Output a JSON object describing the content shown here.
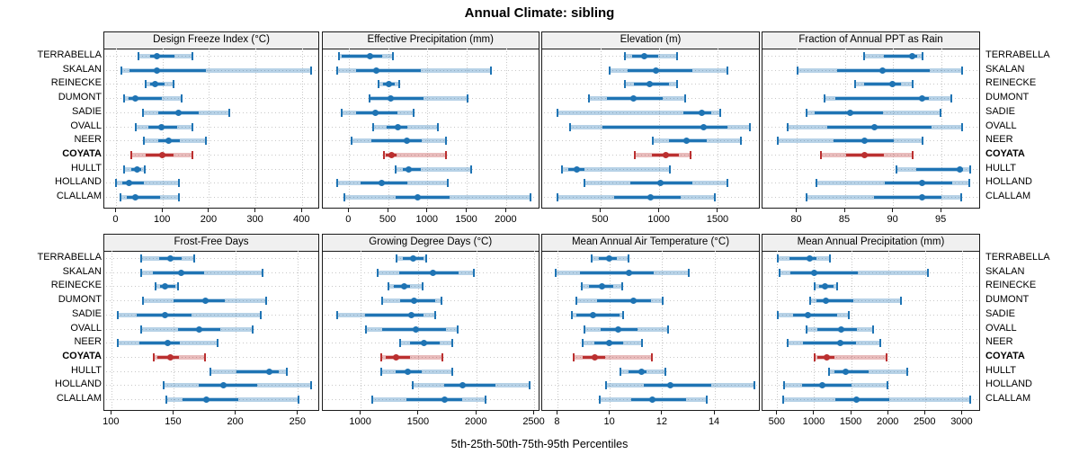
{
  "title": "Annual Climate: sibling",
  "caption": "5th-25th-50th-75th-95th Percentiles",
  "stations": [
    "TERRABELLA",
    "SKALAN",
    "REINECKE",
    "DUMONT",
    "SADIE",
    "OVALL",
    "NEER",
    "COYATA",
    "HULLT",
    "HOLLAND",
    "CLALLAM"
  ],
  "highlight_station": "COYATA",
  "percentiles": [
    5,
    25,
    50,
    75,
    95
  ],
  "colors": {
    "series": "#1f74b4",
    "highlight": "#bb3030",
    "grid": "#c8c8c8",
    "strip_bg": "#f0f0f0",
    "border": "#1a1a1a",
    "text": "#000000"
  },
  "chart_data": [
    {
      "type": "dot-interval",
      "title": "Design Freeze Index (°C)",
      "xlim": [
        -26,
        438
      ],
      "ticks": [
        0,
        100,
        200,
        300,
        400
      ],
      "series": [
        {
          "name": "TERRABELLA",
          "values": [
            48,
            73,
            87,
            124,
            163
          ]
        },
        {
          "name": "SKALAN",
          "values": [
            10,
            29,
            87,
            193,
            419
          ]
        },
        {
          "name": "REINECKE",
          "values": [
            63,
            73,
            84,
            103,
            123
          ]
        },
        {
          "name": "DUMONT",
          "values": [
            17,
            26,
            41,
            97,
            140
          ]
        },
        {
          "name": "SADIE",
          "values": [
            58,
            90,
            134,
            177,
            243
          ]
        },
        {
          "name": "OVALL",
          "values": [
            41,
            68,
            97,
            131,
            164
          ]
        },
        {
          "name": "NEER",
          "values": [
            60,
            90,
            112,
            137,
            192
          ]
        },
        {
          "name": "COYATA",
          "values": [
            32,
            63,
            99,
            123,
            163
          ]
        },
        {
          "name": "HULLT",
          "values": [
            17,
            32,
            45,
            54,
            61
          ]
        },
        {
          "name": "HOLLAND",
          "values": [
            0,
            13,
            28,
            60,
            135
          ]
        },
        {
          "name": "CLALLAM",
          "values": [
            9,
            23,
            41,
            94,
            135
          ]
        }
      ]
    },
    {
      "type": "dot-interval",
      "title": "Effective Precipitation (mm)",
      "xlim": [
        -340,
        2430
      ],
      "ticks": [
        0,
        500,
        1000,
        1500,
        2000
      ],
      "series": [
        {
          "name": "TERRABELLA",
          "values": [
            -134,
            -95,
            271,
            420,
            557
          ]
        },
        {
          "name": "SKALAN",
          "values": [
            -150,
            90,
            345,
            910,
            1805
          ]
        },
        {
          "name": "REINECKE",
          "values": [
            375,
            430,
            500,
            585,
            640
          ]
        },
        {
          "name": "DUMONT",
          "values": [
            260,
            270,
            525,
            945,
            1510
          ]
        },
        {
          "name": "SADIE",
          "values": [
            -95,
            90,
            330,
            615,
            815
          ]
        },
        {
          "name": "OVALL",
          "values": [
            310,
            475,
            615,
            735,
            1125
          ]
        },
        {
          "name": "NEER",
          "values": [
            30,
            280,
            735,
            925,
            1235
          ]
        },
        {
          "name": "COYATA",
          "values": [
            440,
            465,
            545,
            600,
            1235
          ]
        },
        {
          "name": "HULLT",
          "values": [
            595,
            680,
            755,
            910,
            1555
          ]
        },
        {
          "name": "HOLLAND",
          "values": [
            -150,
            145,
            410,
            745,
            1250
          ]
        },
        {
          "name": "CLALLAM",
          "values": [
            -65,
            590,
            870,
            1280,
            2300
          ]
        }
      ]
    },
    {
      "type": "dot-interval",
      "title": "Elevation (m)",
      "xlim": [
        0,
        1860
      ],
      "ticks": [
        500,
        1000,
        1500
      ],
      "series": [
        {
          "name": "TERRABELLA",
          "values": [
            705,
            765,
            865,
            990,
            1150
          ]
        },
        {
          "name": "SKALAN",
          "values": [
            575,
            725,
            965,
            1275,
            1580
          ]
        },
        {
          "name": "REINECKE",
          "values": [
            705,
            780,
            915,
            1080,
            1145
          ]
        },
        {
          "name": "DUMONT",
          "values": [
            395,
            550,
            775,
            1025,
            1215
          ]
        },
        {
          "name": "SADIE",
          "values": [
            130,
            1205,
            1355,
            1440,
            1515
          ]
        },
        {
          "name": "OVALL",
          "values": [
            235,
            515,
            1375,
            1580,
            1770
          ]
        },
        {
          "name": "NEER",
          "values": [
            940,
            1080,
            1225,
            1400,
            1690
          ]
        },
        {
          "name": "COYATA",
          "values": [
            790,
            930,
            1050,
            1160,
            1260
          ]
        },
        {
          "name": "HULLT",
          "values": [
            165,
            225,
            295,
            360,
            1085
          ]
        },
        {
          "name": "HOLLAND",
          "values": [
            360,
            750,
            1005,
            1275,
            1580
          ]
        },
        {
          "name": "CLALLAM",
          "values": [
            130,
            610,
            925,
            1180,
            1470
          ]
        }
      ]
    },
    {
      "type": "dot-interval",
      "title": "Fraction of Annual PPT as Rain",
      "xlim": [
        76.4,
        99.1
      ],
      "ticks": [
        80,
        85,
        90,
        95
      ],
      "series": [
        {
          "name": "TERRABELLA",
          "values": [
            87,
            89,
            92,
            92.5,
            93
          ]
        },
        {
          "name": "SKALAN",
          "values": [
            80,
            84.2,
            88.9,
            93.8,
            97.1
          ]
        },
        {
          "name": "REINECKE",
          "values": [
            86,
            87,
            89.9,
            90.8,
            92
          ]
        },
        {
          "name": "DUMONT",
          "values": [
            82.8,
            84,
            93,
            93.7,
            96
          ]
        },
        {
          "name": "SADIE",
          "values": [
            81,
            81.8,
            85.5,
            88.9,
            94.9
          ]
        },
        {
          "name": "OVALL",
          "values": [
            79,
            83.1,
            88,
            94,
            97.1
          ]
        },
        {
          "name": "NEER",
          "values": [
            78,
            83.8,
            87,
            90,
            93
          ]
        },
        {
          "name": "COYATA",
          "values": [
            82.5,
            85.1,
            87,
            89,
            92
          ]
        },
        {
          "name": "HULLT",
          "values": [
            90.3,
            92.4,
            96.9,
            97.2,
            98
          ]
        },
        {
          "name": "HOLLAND",
          "values": [
            82,
            89.1,
            93,
            96.1,
            97.9
          ]
        },
        {
          "name": "CLALLAM",
          "values": [
            81,
            88,
            93,
            95,
            97
          ]
        }
      ]
    },
    {
      "type": "dot-interval",
      "title": "Frost-Free Days",
      "xlim": [
        94,
        267.5
      ],
      "ticks": [
        100,
        150,
        200,
        250
      ],
      "series": [
        {
          "name": "TERRABELLA",
          "values": [
            124,
            138,
            147,
            156,
            166
          ]
        },
        {
          "name": "SKALAN",
          "values": [
            124,
            133,
            156,
            174,
            221
          ]
        },
        {
          "name": "REINECKE",
          "values": [
            135,
            139,
            143,
            151,
            153
          ]
        },
        {
          "name": "DUMONT",
          "values": [
            125,
            150,
            175,
            191,
            224
          ]
        },
        {
          "name": "SADIE",
          "values": [
            105,
            120,
            143,
            164,
            220
          ]
        },
        {
          "name": "OVALL",
          "values": [
            124,
            153,
            170,
            187,
            213
          ]
        },
        {
          "name": "NEER",
          "values": [
            105,
            122,
            145,
            155,
            185
          ]
        },
        {
          "name": "COYATA",
          "values": [
            134,
            137,
            147,
            154,
            175
          ]
        },
        {
          "name": "HULLT",
          "values": [
            179,
            200,
            227,
            234,
            241
          ]
        },
        {
          "name": "HOLLAND",
          "values": [
            142,
            170,
            190,
            217,
            260
          ]
        },
        {
          "name": "CLALLAM",
          "values": [
            144,
            157,
            176,
            202,
            250
          ]
        }
      ]
    },
    {
      "type": "dot-interval",
      "title": "Growing Degree Days (°C)",
      "xlim": [
        665,
        2550
      ],
      "ticks": [
        1000,
        1500,
        2000,
        2500
      ],
      "series": [
        {
          "name": "TERRABELLA",
          "values": [
            1305,
            1360,
            1450,
            1540,
            1565
          ]
        },
        {
          "name": "SKALAN",
          "values": [
            1140,
            1330,
            1620,
            1840,
            1975
          ]
        },
        {
          "name": "REINECKE",
          "values": [
            1235,
            1280,
            1375,
            1420,
            1530
          ]
        },
        {
          "name": "DUMONT",
          "values": [
            1180,
            1340,
            1455,
            1640,
            1695
          ]
        },
        {
          "name": "SADIE",
          "values": [
            795,
            1035,
            1435,
            1540,
            1640
          ]
        },
        {
          "name": "OVALL",
          "values": [
            1045,
            1185,
            1470,
            1735,
            1835
          ]
        },
        {
          "name": "NEER",
          "values": [
            1340,
            1420,
            1540,
            1680,
            1790
          ]
        },
        {
          "name": "COYATA",
          "values": [
            1175,
            1210,
            1300,
            1420,
            1705
          ]
        },
        {
          "name": "HULLT",
          "values": [
            1175,
            1295,
            1405,
            1525,
            1785
          ]
        },
        {
          "name": "HOLLAND",
          "values": [
            1450,
            1720,
            1880,
            2160,
            2455
          ]
        },
        {
          "name": "CLALLAM",
          "values": [
            1100,
            1395,
            1720,
            1875,
            2075
          ]
        }
      ]
    },
    {
      "type": "dot-interval",
      "title": "Mean Annual Air Temperature (°C)",
      "xlim": [
        7.4,
        15.75
      ],
      "ticks": [
        8,
        10,
        12,
        14
      ],
      "series": [
        {
          "name": "TERRABELLA",
          "values": [
            9.3,
            9.55,
            9.95,
            10.25,
            10.7
          ]
        },
        {
          "name": "SKALAN",
          "values": [
            7.9,
            8.85,
            10.7,
            11.65,
            13.0
          ]
        },
        {
          "name": "REINECKE",
          "values": [
            8.9,
            9.2,
            9.7,
            10.1,
            10.45
          ]
        },
        {
          "name": "DUMONT",
          "values": [
            8.7,
            9.5,
            10.9,
            11.55,
            12.0
          ]
        },
        {
          "name": "SADIE",
          "values": [
            8.55,
            8.7,
            9.35,
            10.35,
            10.5
          ]
        },
        {
          "name": "OVALL",
          "values": [
            9.0,
            9.65,
            10.3,
            11.05,
            12.2
          ]
        },
        {
          "name": "NEER",
          "values": [
            8.95,
            9.4,
            9.95,
            10.5,
            11.2
          ]
        },
        {
          "name": "COYATA",
          "values": [
            8.6,
            8.95,
            9.4,
            9.8,
            11.6
          ]
        },
        {
          "name": "HULLT",
          "values": [
            10.4,
            10.7,
            11.2,
            11.4,
            12.1
          ]
        },
        {
          "name": "HOLLAND",
          "values": [
            9.85,
            11.3,
            12.3,
            13.85,
            15.5
          ]
        },
        {
          "name": "CLALLAM",
          "values": [
            9.6,
            10.8,
            11.6,
            12.9,
            13.7
          ]
        }
      ]
    },
    {
      "type": "dot-interval",
      "title": "Mean Annual Precipitation (mm)",
      "xlim": [
        295,
        3250
      ],
      "ticks": [
        500,
        1000,
        1500,
        2000,
        2500,
        3000
      ],
      "series": [
        {
          "name": "TERRABELLA",
          "values": [
            500,
            655,
            930,
            1020,
            1210
          ]
        },
        {
          "name": "SKALAN",
          "values": [
            520,
            675,
            990,
            1590,
            2535
          ]
        },
        {
          "name": "REINECKE",
          "values": [
            1000,
            1060,
            1135,
            1250,
            1310
          ]
        },
        {
          "name": "DUMONT",
          "values": [
            940,
            1020,
            1155,
            1525,
            2170
          ]
        },
        {
          "name": "SADIE",
          "values": [
            500,
            705,
            910,
            1300,
            1465
          ]
        },
        {
          "name": "OVALL",
          "values": [
            890,
            1040,
            1355,
            1575,
            1790
          ]
        },
        {
          "name": "NEER",
          "values": [
            635,
            845,
            1345,
            1560,
            1885
          ]
        },
        {
          "name": "COYATA",
          "values": [
            1005,
            1040,
            1160,
            1265,
            1975
          ]
        },
        {
          "name": "HULLT",
          "values": [
            1195,
            1265,
            1415,
            1730,
            2255
          ]
        },
        {
          "name": "HOLLAND",
          "values": [
            585,
            835,
            1100,
            1495,
            1980
          ]
        },
        {
          "name": "CLALLAM",
          "values": [
            575,
            1285,
            1565,
            2005,
            3110
          ]
        }
      ]
    }
  ]
}
